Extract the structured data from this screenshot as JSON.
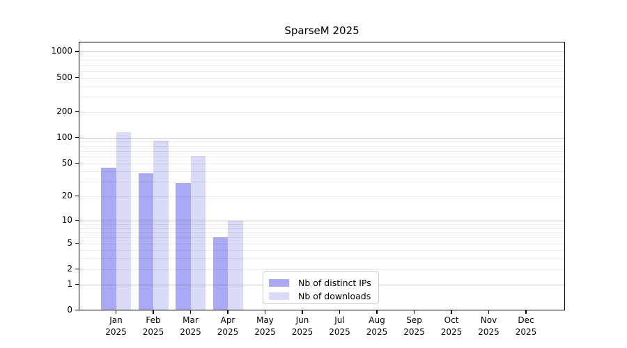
{
  "chart_data": {
    "type": "bar",
    "title": "SparseM 2025",
    "categories": [
      "Jan 2025",
      "Feb 2025",
      "Mar 2025",
      "Apr 2025",
      "May 2025",
      "Jun 2025",
      "Jul 2025",
      "Aug 2025",
      "Sep 2025",
      "Oct 2025",
      "Nov 2025",
      "Dec 2025"
    ],
    "series": [
      {
        "name": "Nb of distinct IPs",
        "color": "#aaaaf4",
        "values": [
          44,
          38,
          29,
          6,
          null,
          null,
          null,
          null,
          null,
          null,
          null,
          null
        ]
      },
      {
        "name": "Nb of downloads",
        "color": "#d9d9f8",
        "values": [
          115,
          92,
          61,
          10,
          null,
          null,
          null,
          null,
          null,
          null,
          null,
          null
        ]
      }
    ],
    "yticks": [
      0,
      1,
      2,
      5,
      10,
      20,
      50,
      100,
      200,
      500,
      1000
    ],
    "major_grid_values": [
      1,
      10,
      100,
      1000
    ],
    "minor_grid_values": [
      2,
      3,
      4,
      5,
      6,
      7,
      8,
      9,
      20,
      30,
      40,
      50,
      60,
      70,
      80,
      90,
      200,
      300,
      400,
      500,
      600,
      700,
      800,
      900
    ],
    "yscale": "log10(1+y)",
    "ylim": [
      0,
      1283
    ],
    "xlabel": "",
    "ylabel": "",
    "grid": "horizontal",
    "legend_position": "inside-lower-center",
    "axis_color": "#000000"
  }
}
